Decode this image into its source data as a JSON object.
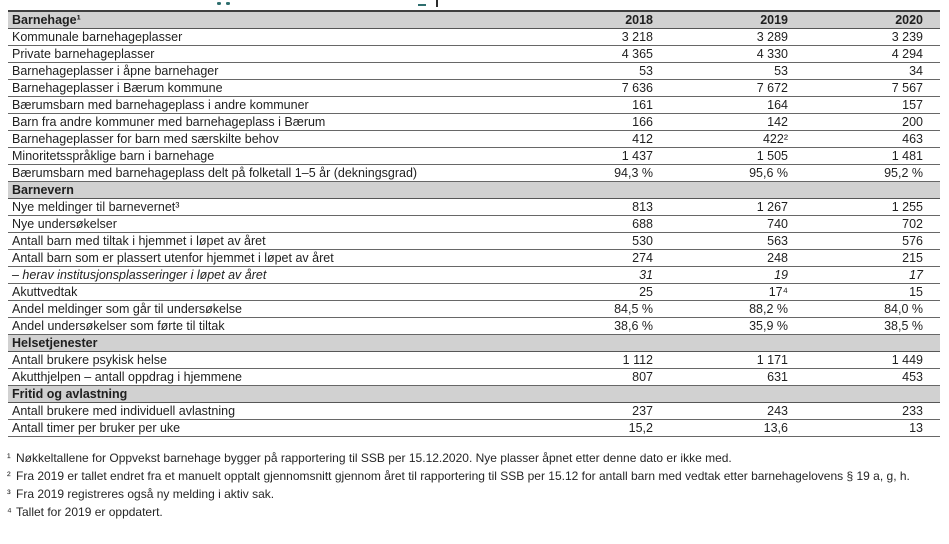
{
  "colors": {
    "section_header_bg": "#d1d1d1",
    "row_border": "#676767",
    "table_top_border": "#3f3f3f",
    "text": "#1f1f1f",
    "clipped_fragment": "#2e6e6e"
  },
  "table": {
    "year_columns": [
      "2018",
      "2019",
      "2020"
    ],
    "sections": [
      {
        "title": "Barnehage¹",
        "rows": [
          {
            "label": "Kommunale barnehageplasser",
            "values": [
              "3 218",
              "3 289",
              "3 239"
            ]
          },
          {
            "label": "Private barnehageplasser",
            "values": [
              "4 365",
              "4 330",
              "4 294"
            ]
          },
          {
            "label": "Barnehageplasser i åpne barnehager",
            "values": [
              "53",
              "53",
              "34"
            ]
          },
          {
            "label": "Barnehageplasser i Bærum kommune",
            "values": [
              "7 636",
              "7 672",
              "7 567"
            ]
          },
          {
            "label": "Bærumsbarn med barnehageplass i andre kommuner",
            "values": [
              "161",
              "164",
              "157"
            ]
          },
          {
            "label": "Barn fra andre kommuner med barnehageplass i Bærum",
            "values": [
              "166",
              "142",
              "200"
            ]
          },
          {
            "label": "Barnehageplasser for barn med særskilte behov",
            "values": [
              "412",
              "422²",
              "463"
            ]
          },
          {
            "label": "Minoritetsspråklige barn i barnehage",
            "values": [
              "1 437",
              "1 505",
              "1 481"
            ]
          },
          {
            "label": "Bærumsbarn med barnehageplass delt på folketall 1–5 år (dekningsgrad)",
            "values": [
              "94,3 %",
              "95,6 %",
              "95,2 %"
            ]
          }
        ]
      },
      {
        "title": "Barnevern",
        "rows": [
          {
            "label": "Nye meldinger til barnevernet³",
            "values": [
              "813",
              "1 267",
              "1 255"
            ]
          },
          {
            "label": "Nye undersøkelser",
            "values": [
              "688",
              "740",
              "702"
            ]
          },
          {
            "label": "Antall barn med tiltak i hjemmet i løpet av året",
            "values": [
              "530",
              "563",
              "576"
            ]
          },
          {
            "label": "Antall barn som er plassert utenfor hjemmet i løpet av året",
            "values": [
              "274",
              "248",
              "215"
            ]
          },
          {
            "label": "– herav institusjonsplasseringer i løpet av året",
            "values": [
              "31",
              "19",
              "17"
            ],
            "italic": true
          },
          {
            "label": "Akuttvedtak",
            "values": [
              "25",
              "17⁴",
              "15"
            ]
          },
          {
            "label": "Andel meldinger som går til undersøkelse",
            "values": [
              "84,5 %",
              "88,2 %",
              "84,0 %"
            ]
          },
          {
            "label": "Andel undersøkelser som førte til tiltak",
            "values": [
              "38,6 %",
              "35,9 %",
              "38,5 %"
            ]
          }
        ]
      },
      {
        "title": "Helsetjenester",
        "rows": [
          {
            "label": "Antall brukere psykisk helse",
            "values": [
              "1 112",
              "1 171",
              "1 449"
            ]
          },
          {
            "label": "Akutthjelpen – antall oppdrag i hjemmene",
            "values": [
              "807",
              "631",
              "453"
            ]
          }
        ]
      },
      {
        "title": "Fritid og avlastning",
        "rows": [
          {
            "label": "Antall brukere med individuell avlastning",
            "values": [
              "237",
              "243",
              "233"
            ]
          },
          {
            "label": "Antall timer per bruker per uke",
            "values": [
              "15,2",
              "13,6",
              "13"
            ]
          }
        ]
      }
    ]
  },
  "footnotes": [
    {
      "marker": "¹",
      "text": "Nøkkeltallene for Oppvekst barnehage bygger på rapportering til SSB per 15.12.2020. Nye plasser åpnet etter denne dato er ikke med."
    },
    {
      "marker": "²",
      "text": "Fra 2019 er tallet endret fra et manuelt opptalt gjennomsnitt gjennom året til rapportering til SSB per 15.12 for antall barn med vedtak etter barnehagelovens § 19 a, g, h."
    },
    {
      "marker": "³",
      "text": "Fra 2019 registreres også ny melding i aktiv sak."
    },
    {
      "marker": "⁴",
      "text": "Tallet for 2019 er oppdatert."
    }
  ]
}
